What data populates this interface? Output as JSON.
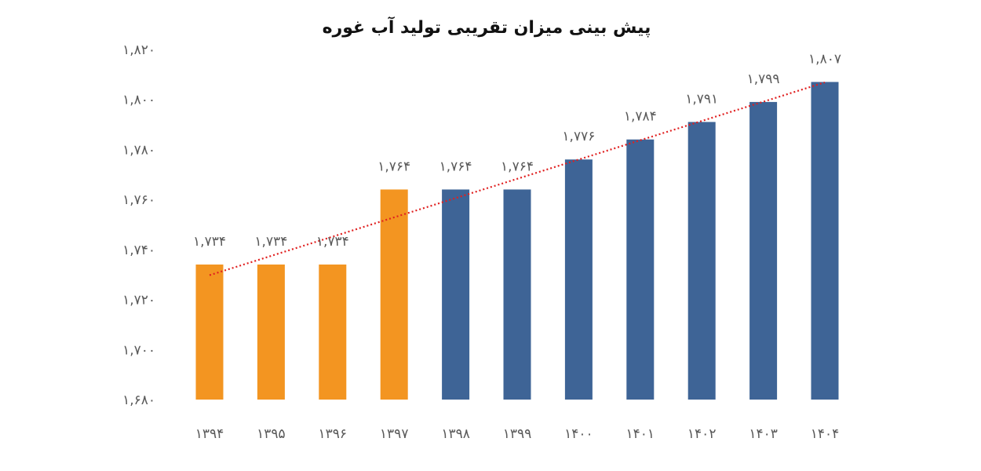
{
  "chart_data": {
    "type": "bar",
    "title": "پیش بینی میزان تقریبی تولید آب غوره",
    "xlabel": "",
    "ylabel": "",
    "ylim": [
      1680,
      1820
    ],
    "yticks": [
      1680,
      1700,
      1720,
      1740,
      1760,
      1780,
      1800,
      1820
    ],
    "ytick_labels": [
      "۱,۶۸۰",
      "۱,۷۰۰",
      "۱,۷۲۰",
      "۱,۷۴۰",
      "۱,۷۶۰",
      "۱,۷۸۰",
      "۱,۸۰۰",
      "۱,۸۲۰"
    ],
    "categories": [
      "۱۳۹۴",
      "۱۳۹۵",
      "۱۳۹۶",
      "۱۳۹۷",
      "۱۳۹۸",
      "۱۳۹۹",
      "۱۴۰۰",
      "۱۴۰۱",
      "۱۴۰۲",
      "۱۴۰۳",
      "۱۴۰۴"
    ],
    "values": [
      1734,
      1734,
      1734,
      1764,
      1764,
      1764,
      1776,
      1784,
      1791,
      1799,
      1807
    ],
    "data_labels": [
      "۱,۷۳۴",
      "۱,۷۳۴",
      "۱,۷۳۴",
      "۱,۷۶۴",
      "۱,۷۶۴",
      "۱,۷۶۴",
      "۱,۷۷۶",
      "۱,۷۸۴",
      "۱,۷۹۱",
      "۱,۷۹۹",
      "۱,۸۰۷"
    ],
    "bar_colors": [
      "#F39521",
      "#F39521",
      "#F39521",
      "#F39521",
      "#3E6496",
      "#3E6496",
      "#3E6496",
      "#3E6496",
      "#3E6496",
      "#3E6496",
      "#3E6496"
    ],
    "trendline": {
      "type": "linear",
      "color": "#E02020",
      "style": "dotted"
    },
    "grid": false,
    "legend": "none"
  },
  "colors": {
    "actual": "#F39521",
    "forecast": "#3E6496",
    "trend": "#E02020"
  }
}
